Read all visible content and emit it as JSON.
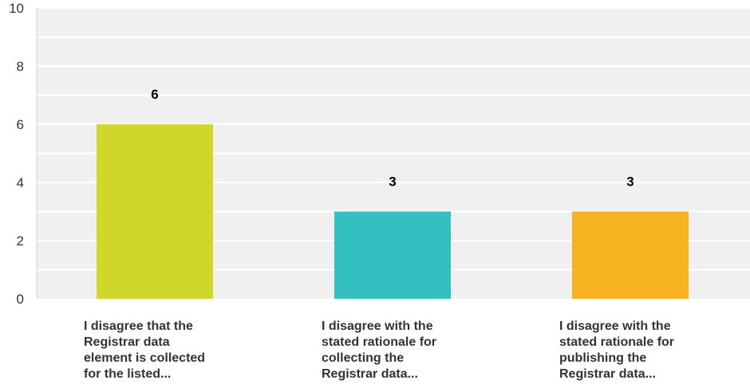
{
  "chart_data": {
    "type": "bar",
    "categories": [
      [
        "I disagree that the",
        "Registrar data",
        "element is collected",
        "for the listed..."
      ],
      [
        "I disagree with the",
        "stated rationale for",
        "collecting the",
        "Registrar data..."
      ],
      [
        "I disagree with the",
        "stated rationale for",
        "publishing the",
        "Registrar data..."
      ]
    ],
    "values": [
      6,
      3,
      3
    ],
    "data_labels": [
      "6",
      "3",
      "3"
    ],
    "bar_colors": [
      "#d0d62b",
      "#34bfc1",
      "#f6b221"
    ],
    "ylim": [
      0,
      10
    ],
    "y_ticks": [
      "0",
      "2",
      "4",
      "6",
      "8",
      "10"
    ],
    "grid": true,
    "plot_background": "#f0f0f0",
    "grid_color": "#ffffff",
    "title": "",
    "xlabel": "",
    "ylabel": ""
  }
}
